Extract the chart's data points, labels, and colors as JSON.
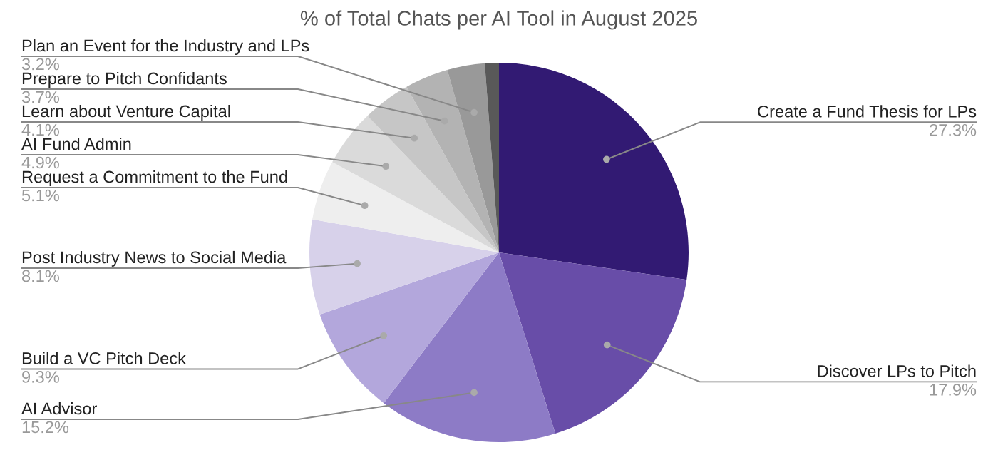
{
  "chart_data": {
    "type": "pie",
    "title": "% of Total Chats per AI Tool in August 2025",
    "categories": [
      "Create a Fund Thesis for LPs",
      "Discover LPs to Pitch",
      "AI Advisor",
      "Build a VC Pitch Deck",
      "Post Industry News to Social Media",
      "Request a Commitment to the Fund",
      "AI Fund Admin",
      "Learn about Venture Capital",
      "Prepare to Pitch Confidants",
      "Plan an Event for the Industry and LPs",
      null
    ],
    "values": [
      27.3,
      17.9,
      15.2,
      9.3,
      8.1,
      5.1,
      4.9,
      4.1,
      3.7,
      3.2,
      1.2
    ],
    "value_labels": [
      "27.3%",
      "17.9%",
      "15.2%",
      "9.3%",
      "8.1%",
      "5.1%",
      "4.9%",
      "4.1%",
      "3.7%",
      "3.2%",
      null
    ],
    "colors": [
      "#321a73",
      "#684da8",
      "#8d7bc6",
      "#b3a7dc",
      "#d7d1ea",
      "#eeeeee",
      "#dadada",
      "#c6c6c6",
      "#b3b3b3",
      "#999999",
      "#595959"
    ],
    "legend": false
  }
}
